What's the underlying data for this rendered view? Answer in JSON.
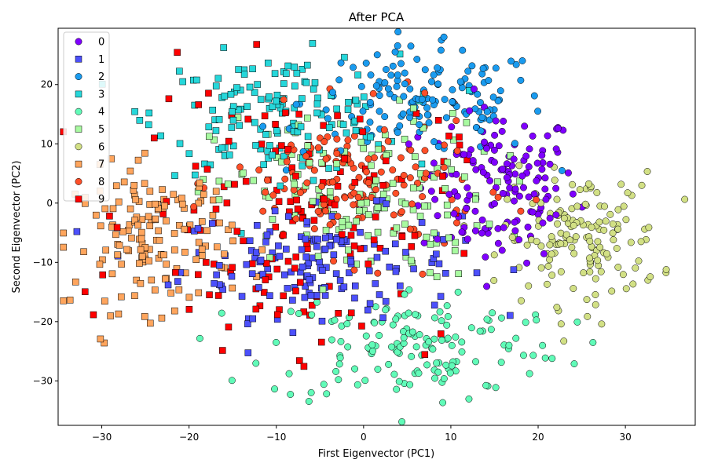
{
  "chart_data": {
    "type": "scatter",
    "title": "After PCA",
    "xlabel": "First Eigenvector (PC1)",
    "ylabel": "Second Eigenvector (PC2)",
    "xlim": [
      -35,
      38
    ],
    "ylim": [
      -37.5,
      29.5
    ],
    "xticks": [
      -30,
      -20,
      -10,
      0,
      10,
      20,
      30
    ],
    "yticks": [
      -30,
      -20,
      -10,
      0,
      10,
      20
    ],
    "xtick_labels": [
      "−30",
      "−20",
      "−10",
      "0",
      "10",
      "20",
      "30"
    ],
    "ytick_labels": [
      "−30",
      "−20",
      "−10",
      "0",
      "10",
      "20"
    ],
    "grid": false,
    "legend_position": "top-left",
    "clusters": [
      {
        "name": "0",
        "color": "#7f00ff",
        "marker": "circle",
        "center": [
          15.5,
          3
        ],
        "spread": [
          4.5,
          6.5
        ],
        "count": 150
      },
      {
        "name": "1",
        "color": "#4c50fb",
        "marker": "square",
        "center": [
          -5,
          -10
        ],
        "spread": [
          8,
          4.5
        ],
        "count": 150
      },
      {
        "name": "2",
        "color": "#1a9bef",
        "marker": "circle",
        "center": [
          7,
          17
        ],
        "spread": [
          7,
          4.5
        ],
        "count": 150
      },
      {
        "name": "3",
        "color": "#26d7da",
        "marker": "square",
        "center": [
          -10,
          15
        ],
        "spread": [
          7,
          5
        ],
        "count": 150
      },
      {
        "name": "4",
        "color": "#61fbb8",
        "marker": "circle",
        "center": [
          6,
          -24
        ],
        "spread": [
          8.5,
          5
        ],
        "count": 150
      },
      {
        "name": "5",
        "color": "#a8faa0",
        "marker": "square",
        "center": [
          -1,
          1
        ],
        "spread": [
          8,
          7
        ],
        "count": 150
      },
      {
        "name": "6",
        "color": "#d2e085",
        "marker": "circle",
        "center": [
          25,
          -6
        ],
        "spread": [
          4.5,
          5.5
        ],
        "count": 150
      },
      {
        "name": "7",
        "color": "#ffa55d",
        "marker": "square",
        "center": [
          -24,
          -6
        ],
        "spread": [
          4.5,
          6
        ],
        "count": 150
      },
      {
        "name": "8",
        "color": "#ff4f28",
        "marker": "circle",
        "center": [
          -1,
          3
        ],
        "spread": [
          7,
          6
        ],
        "count": 150
      },
      {
        "name": "9",
        "color": "#ff0000",
        "marker": "square",
        "center": [
          -8,
          -2
        ],
        "spread": [
          9,
          11
        ],
        "count": 150
      }
    ]
  }
}
